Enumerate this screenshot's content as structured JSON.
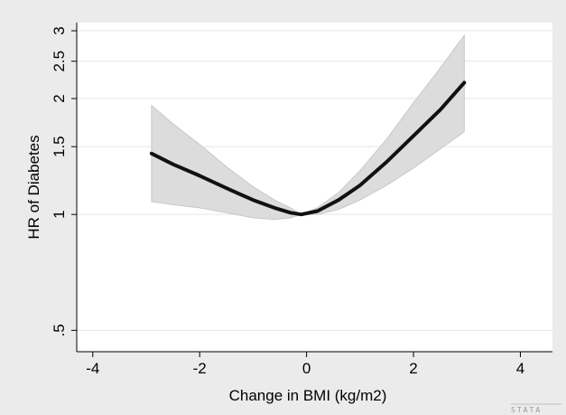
{
  "chart_data": {
    "type": "line",
    "title": "",
    "xlabel": "Change in BMI (kg/m2)",
    "ylabel": "HR of Diabetes",
    "xlim": [
      -4.3,
      4.6
    ],
    "ylim": [
      0.44,
      3.15
    ],
    "yscale": "log",
    "xticks": [
      -4,
      -2,
      0,
      2,
      4
    ],
    "xtick_labels": [
      "-4",
      "-2",
      "0",
      "2",
      "4"
    ],
    "yticks": [
      0.5,
      1,
      1.5,
      2,
      2.5,
      3
    ],
    "ytick_labels": [
      ".5",
      "1",
      "1.5",
      "2",
      "2.5",
      "3"
    ],
    "grid": "horizontal",
    "legend": "none",
    "background": "#ebebeb",
    "plot_background": "#ffffff",
    "line_color": "#111111",
    "band_color": "#dcdcdc",
    "series": [
      {
        "x": [
          -2.9,
          -2.5,
          -2.0,
          -1.5,
          -1.0,
          -0.6,
          -0.3,
          -0.1,
          0.2,
          0.6,
          1.0,
          1.5,
          2.0,
          2.5,
          2.95
        ],
        "values": [
          1.44,
          1.35,
          1.26,
          1.17,
          1.09,
          1.04,
          1.01,
          1.0,
          1.02,
          1.09,
          1.19,
          1.37,
          1.6,
          1.87,
          2.2
        ]
      }
    ],
    "confidence_band": {
      "x": [
        -2.9,
        -2.5,
        -2.0,
        -1.5,
        -1.0,
        -0.6,
        -0.3,
        -0.1,
        0.2,
        0.6,
        1.0,
        1.5,
        2.0,
        2.5,
        2.95
      ],
      "lower": [
        1.08,
        1.06,
        1.04,
        1.01,
        0.98,
        0.97,
        0.98,
        1.0,
        1.0,
        1.03,
        1.09,
        1.19,
        1.32,
        1.48,
        1.64
      ],
      "upper": [
        1.92,
        1.72,
        1.52,
        1.33,
        1.18,
        1.09,
        1.04,
        1.0,
        1.04,
        1.14,
        1.3,
        1.57,
        1.95,
        2.4,
        2.92
      ]
    }
  },
  "watermark": "STATA"
}
